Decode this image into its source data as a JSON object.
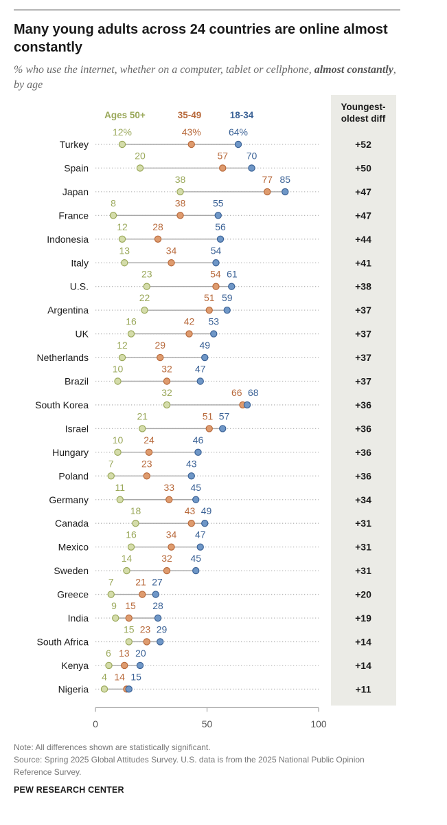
{
  "title": "Many young adults across 24 countries are online almost constantly",
  "subtitle": {
    "prefix": "% who use the internet, whether on a computer, tablet or cellphone,",
    "emphasis": "almost constantly",
    "suffix": ", by age"
  },
  "diff_header": "Youngest-oldest diff",
  "note": "Note: All differences shown are statistically significant.",
  "source": "Source: Spring 2025 Global Attitudes Survey. U.S. data is from the 2025 National Public Opinion Reference Survey.",
  "brand": "PEW RESEARCH CENTER",
  "colors": {
    "ages_50_plus": "#9aa85a",
    "ages_35_49": "#b86a3c",
    "ages_18_34": "#3b6296",
    "fill_50_plus": "#d4dcaa",
    "fill_35_49": "#de9b6e",
    "fill_18_34": "#6f97c7",
    "diff_panel": "#ebebe6"
  },
  "chart_data": {
    "type": "dot",
    "xlim": [
      0,
      100
    ],
    "xticks": [
      "0",
      "50",
      "100"
    ],
    "first_row_value_suffix": "%",
    "categories": [
      "Turkey",
      "Spain",
      "Japan",
      "France",
      "Indonesia",
      "Italy",
      "U.S.",
      "Argentina",
      "UK",
      "Netherlands",
      "Brazil",
      "South Korea",
      "Israel",
      "Hungary",
      "Poland",
      "Germany",
      "Canada",
      "Mexico",
      "Sweden",
      "Greece",
      "India",
      "South Africa",
      "Kenya",
      "Nigeria"
    ],
    "series": [
      {
        "name": "Ages 50+",
        "values": [
          12,
          20,
          38,
          8,
          12,
          13,
          23,
          22,
          16,
          12,
          10,
          32,
          21,
          10,
          7,
          11,
          18,
          16,
          14,
          7,
          9,
          15,
          6,
          4
        ]
      },
      {
        "name": "35-49",
        "values": [
          43,
          57,
          77,
          38,
          28,
          34,
          54,
          51,
          42,
          29,
          32,
          66,
          51,
          24,
          23,
          33,
          43,
          34,
          32,
          21,
          15,
          23,
          13,
          14
        ]
      },
      {
        "name": "18-34",
        "values": [
          64,
          70,
          85,
          55,
          56,
          54,
          61,
          59,
          53,
          49,
          47,
          68,
          57,
          46,
          43,
          45,
          49,
          47,
          45,
          27,
          28,
          29,
          20,
          15
        ]
      }
    ],
    "diff": [
      "+52",
      "+50",
      "+47",
      "+47",
      "+44",
      "+41",
      "+38",
      "+37",
      "+37",
      "+37",
      "+37",
      "+36",
      "+36",
      "+36",
      "+36",
      "+34",
      "+31",
      "+31",
      "+31",
      "+20",
      "+19",
      "+14",
      "+14",
      "+11"
    ]
  }
}
